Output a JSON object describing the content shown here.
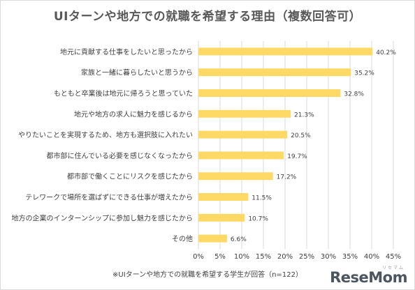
{
  "chart_data": {
    "type": "bar",
    "orientation": "horizontal",
    "title": "UIターンや地方での就職を希望する理由（複数回答可）",
    "categories": [
      "地元に貢献する仕事をしたいと思ったから",
      "家族と一緒に暮らしたいと思うから",
      "もともと卒業後は地元に帰ろうと思っていた",
      "地元や地方の求人に魅力を感じるから",
      "やりたいことを実現するため、地方も選択肢に入れたい",
      "都市部に住んでいる必要を感じなくなったから",
      "都市部で働くことにリスクを感じたから",
      "テレワークで場所を選ばずにできる仕事が増えたから",
      "地方の企業のインターンシップに参加し魅力を感じたから",
      "その他"
    ],
    "values": [
      40.2,
      35.2,
      32.8,
      21.3,
      20.5,
      19.7,
      17.2,
      11.5,
      10.7,
      6.6
    ],
    "value_labels": [
      "40.2%",
      "35.2%",
      "32.8%",
      "21.3%",
      "20.5%",
      "19.7%",
      "17.2%",
      "11.5%",
      "10.7%",
      "6.6%"
    ],
    "xlim": [
      0,
      45
    ],
    "xticks": [
      0,
      5,
      10,
      15,
      20,
      25,
      30,
      35,
      40,
      45
    ],
    "xtick_labels": [
      "0%",
      "5%",
      "10%",
      "15%",
      "20%",
      "25%",
      "30%",
      "35%",
      "40%",
      "45%"
    ],
    "xlabel": "",
    "ylabel": "",
    "grid": true,
    "legend": "none",
    "bar_color": "#ffd966",
    "note": "※UIターンや地方での就職を希望する学生が回答（n=122）"
  },
  "logo": {
    "text": "ReseMom",
    "sub": "リセマム"
  }
}
